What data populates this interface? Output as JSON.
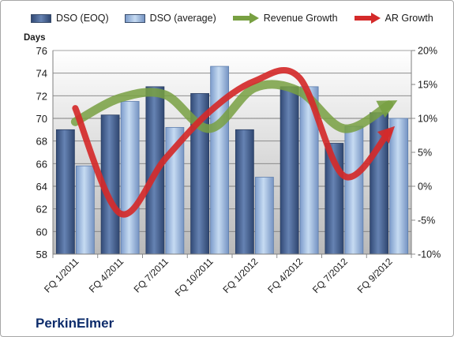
{
  "chart_data": {
    "type": "bar",
    "brand": "PerkinElmer",
    "y_unit": "Days",
    "categories": [
      "FQ 1/2011",
      "FQ 4/2011",
      "FQ 7/2011",
      "FQ 10/2011",
      "FQ 1/2012",
      "FQ 4/2012",
      "FQ 7/2012",
      "FQ 9/2012"
    ],
    "x_tick_labels": [
      "FQ 1/2011",
      "FQ 4/2011",
      "FQ 7/2011",
      "FQ 10/2011",
      "FQ 1/2012",
      "FQ 4/2012",
      "FQ 7/2012",
      "FQ 9/2012"
    ],
    "ylim": [
      58,
      76
    ],
    "y_ticks": [
      58,
      60,
      62,
      64,
      66,
      68,
      70,
      72,
      74,
      76
    ],
    "y2lim": [
      -10,
      20
    ],
    "y2_ticks": [
      -10,
      -5,
      0,
      5,
      10,
      15,
      20
    ],
    "y2_tick_labels": [
      "-10%",
      "-5%",
      "0%",
      "5%",
      "10%",
      "15%",
      "20%"
    ],
    "series": [
      {
        "name": "DSO (EOQ)",
        "kind": "bar",
        "axis": "left",
        "color": "#4a6494",
        "values": [
          69.0,
          70.3,
          72.8,
          72.2,
          69.0,
          72.8,
          67.8,
          70.5
        ]
      },
      {
        "name": "DSO (average)",
        "kind": "bar",
        "axis": "left",
        "color": "#a7c3e4",
        "values": [
          65.8,
          71.5,
          69.2,
          74.6,
          64.8,
          72.8,
          69.3,
          70.0
        ]
      },
      {
        "name": "Revenue Growth",
        "kind": "line",
        "axis": "right",
        "color": "#78a042",
        "values": [
          9.5,
          13.0,
          13.5,
          8.5,
          14.5,
          14.0,
          8.5,
          12.0
        ]
      },
      {
        "name": "AR Growth",
        "kind": "line",
        "axis": "right",
        "color": "#d42a2a",
        "values": [
          11.5,
          -4.0,
          4.0,
          11.0,
          15.5,
          16.0,
          1.5,
          8.0
        ]
      }
    ],
    "grid": true,
    "legend_position": "top"
  }
}
